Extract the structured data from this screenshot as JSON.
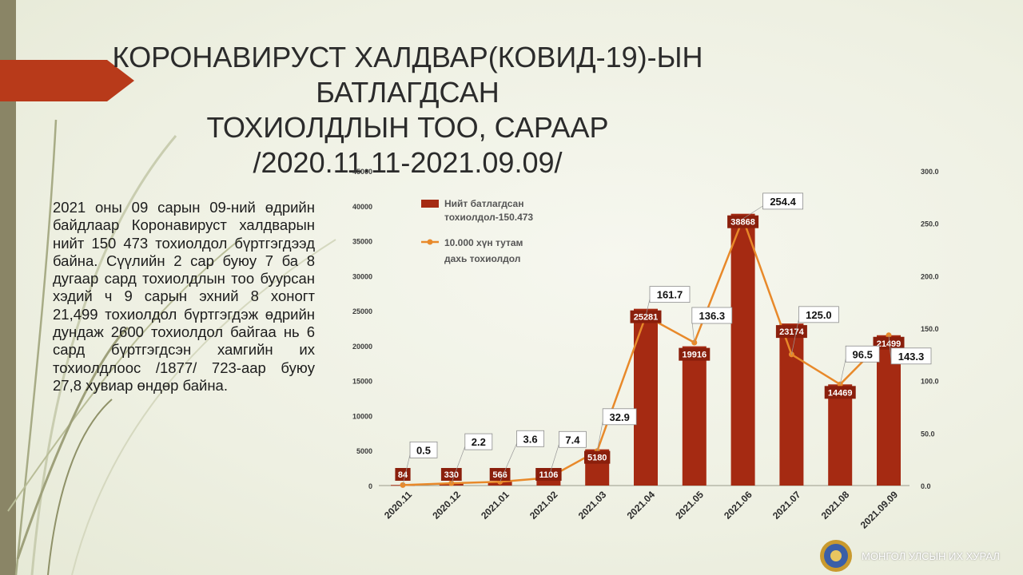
{
  "title_lines": [
    "КОРОНАВИРУСТ ХАЛДВАР(КОВИД-19)-ЫН БАТЛАГДСАН",
    "ТОХИОЛДЛЫН ТОО, САРААР",
    "/2020.11.11-2021.09.09/"
  ],
  "description": "2021 оны 09 сарын 09-ний өдрийн байдлаар Коронавируст халдварын нийт 150 473 тохиолдол бүртгэгдээд байна. Сүүлийн 2 сар буюу 7 ба 8 дугаар сард тохиолдлын тоо буурсан хэдий ч 9 сарын эхний 8 хоногт 21,499 тохиолдол бүртгэгдэж өдрийн дундаж 2600 тохиолдол байгаа нь 6 сард бүртгэгдсэн хамгийн их тохиолдлоос /1877/ 723-аар буюу 27,8 хувиар өндөр байна.",
  "organization": "МОНГОЛ УЛСЫН ИХ ХУРАЛ",
  "colors": {
    "bar": "#a52a12",
    "line": "#e8892a",
    "accent_arrow": "#b83a1a"
  },
  "chart_data": {
    "type": "bar",
    "categories": [
      "2020.11",
      "2020.12",
      "2021.01",
      "2021.02",
      "2021.03",
      "2021.04",
      "2021.05",
      "2021.06",
      "2021.07",
      "2021.08",
      "2021.09.09"
    ],
    "series": [
      {
        "name": "Нийт батлагдсан тохиолдол-150.473",
        "type": "bar",
        "axis": "left",
        "values": [
          84,
          330,
          566,
          1106,
          5180,
          25281,
          19916,
          38868,
          23174,
          14469,
          21499
        ]
      },
      {
        "name": "10.000 хүн тутам дахь тохиолдол",
        "type": "line",
        "axis": "right",
        "values": [
          0.5,
          2.2,
          3.6,
          7.4,
          32.9,
          161.7,
          136.3,
          254.4,
          125.0,
          96.5,
          143.3
        ]
      }
    ],
    "bar_labels": [
      "84",
      "330",
      "566",
      "1106",
      "5180",
      "25281",
      "19916",
      "38868",
      "23174",
      "14469",
      "21499"
    ],
    "line_labels": [
      "0.5",
      "2.2",
      "3.6",
      "7.4",
      "32.9",
      "161.7",
      "136.3",
      "254.4",
      "125.0",
      "96.5",
      "143.3"
    ],
    "y_left": {
      "min": 0,
      "max": 45000,
      "ticks": [
        "0",
        "5000",
        "10000",
        "15000",
        "20000",
        "25000",
        "30000",
        "35000",
        "40000",
        "45000"
      ]
    },
    "y_right": {
      "min": 0,
      "max": 300,
      "ticks": [
        "0.0",
        "50.0",
        "100.0",
        "150.0",
        "200.0",
        "250.0",
        "300.0"
      ]
    },
    "legend_position": "top-left inside plot",
    "grid": false
  }
}
